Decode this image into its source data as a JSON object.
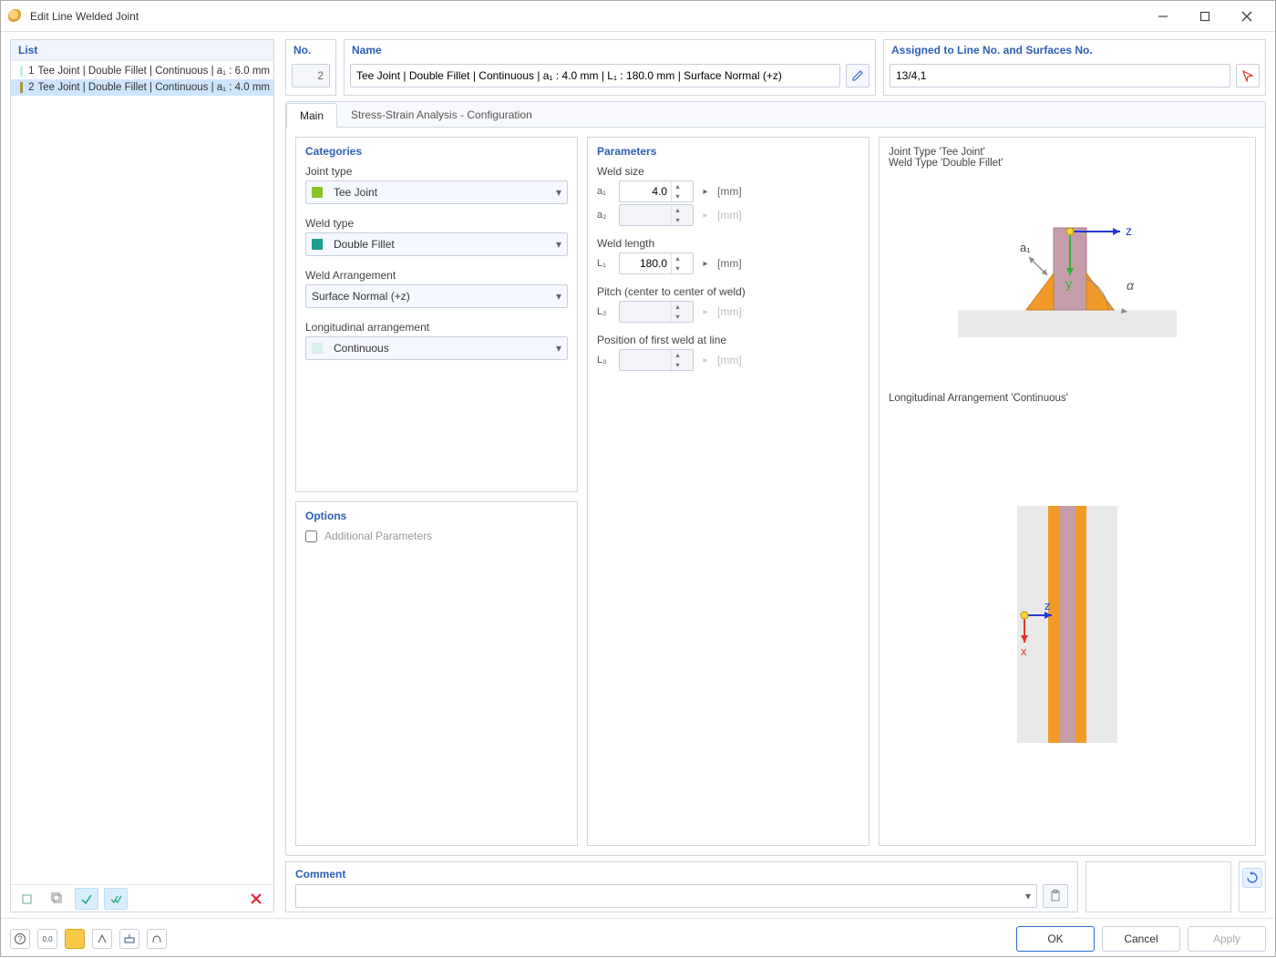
{
  "window": {
    "title": "Edit Line Welded Joint"
  },
  "list": {
    "header": "List",
    "items": [
      {
        "idx": "1",
        "label": "Tee Joint | Double Fillet | Continuous | a₁ : 6.0 mm",
        "color": "#c6ede6",
        "selected": false
      },
      {
        "idx": "2",
        "label": "Tee Joint | Double Fillet | Continuous | a₁ : 4.0 mm",
        "color": "#a79a3a",
        "selected": true
      }
    ]
  },
  "header": {
    "no_label": "No.",
    "no_value": "2",
    "name_label": "Name",
    "name_value": "Tee Joint | Double Fillet | Continuous | a₁ : 4.0 mm | L₁ : 180.0 mm | Surface Normal (+z)",
    "assigned_label": "Assigned to Line No. and Surfaces No.",
    "assigned_value": "13/4,1"
  },
  "tabs": {
    "main": "Main",
    "ssa": "Stress-Strain Analysis - Configuration"
  },
  "categories": {
    "title": "Categories",
    "joint_type_label": "Joint type",
    "joint_type_value": "Tee Joint",
    "joint_type_color": "#89c328",
    "weld_type_label": "Weld type",
    "weld_type_value": "Double Fillet",
    "weld_type_color": "#1f9e93",
    "arrangement_label": "Weld Arrangement",
    "arrangement_value": "Surface Normal (+z)",
    "long_label": "Longitudinal arrangement",
    "long_value": "Continuous",
    "long_color": "#d9f0ef"
  },
  "options": {
    "title": "Options",
    "additional": "Additional Parameters"
  },
  "parameters": {
    "title": "Parameters",
    "weld_size_label": "Weld size",
    "a1_label": "a₁",
    "a1_value": "4.0",
    "a1_unit": "[mm]",
    "a2_label": "a₂",
    "a2_value": "",
    "a2_unit": "[mm]",
    "weld_length_label": "Weld length",
    "L1_label": "L₁",
    "L1_value": "180.0",
    "L1_unit": "[mm]",
    "pitch_label": "Pitch (center to center of weld)",
    "L2_label": "L₂",
    "L2_value": "",
    "L2_unit": "[mm]",
    "pos_label": "Position of first weld at line",
    "L3_label": "L₃",
    "L3_value": "",
    "L3_unit": "[mm]"
  },
  "preview": {
    "top_line1": "Joint Type 'Tee Joint'",
    "top_line2": "Weld Type 'Double Fillet'",
    "bottom_title": "Longitudinal Arrangement 'Continuous'",
    "diagram1": {
      "weld_color": "#f19a27",
      "plate_color": "#c59daa",
      "base_color": "#e9e9e9",
      "arc_color": "#8a8a8a",
      "z_arrow_color": "#233bd3",
      "y_arrow_color": "#2db33a",
      "point_color": "#ffd23b",
      "a1_label": "a₁"
    },
    "diagram2": {
      "edge_color": "#e9e9e9",
      "weld_color": "#f19a27",
      "plate_color": "#c59daa",
      "z_arrow_color": "#233bd3",
      "x_arrow_color": "#d9372b",
      "point_color": "#ffd23b"
    }
  },
  "comment": {
    "title": "Comment",
    "value": ""
  },
  "buttons": {
    "ok": "OK",
    "cancel": "Cancel",
    "apply": "Apply"
  }
}
